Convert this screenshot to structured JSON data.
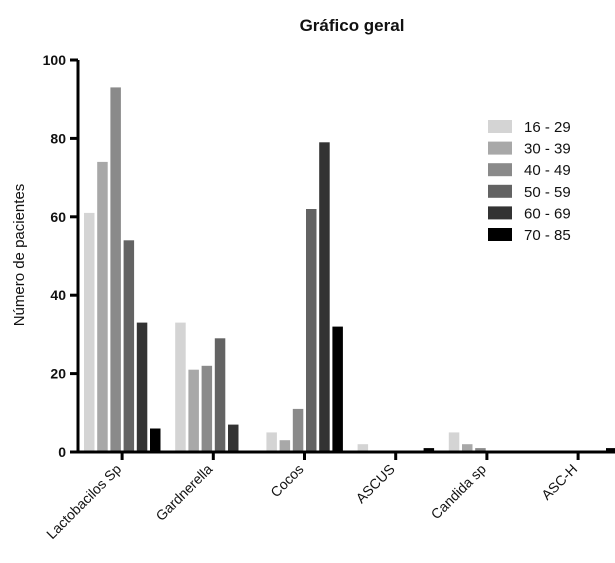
{
  "chart_data": {
    "type": "bar",
    "title": "Gráfico geral",
    "xlabel": "",
    "ylabel": "Número de pacientes",
    "ylim": [
      0,
      100
    ],
    "yticks": [
      0,
      20,
      40,
      60,
      80,
      100
    ],
    "grid": false,
    "legend_position": "top-right",
    "categories": [
      "Lactobacilos Sp",
      "Gardnerella",
      "Cocos",
      "ASCUS",
      "Candida sp",
      "ASC-H"
    ],
    "series": [
      {
        "name": "16 - 29",
        "color": "#d4d4d4",
        "values": [
          61,
          33,
          5,
          2,
          5,
          0
        ]
      },
      {
        "name": "30 - 39",
        "color": "#a8a8a8",
        "values": [
          74,
          21,
          3,
          0,
          2,
          0
        ]
      },
      {
        "name": "40 - 49",
        "color": "#8a8a8a",
        "values": [
          93,
          22,
          11,
          0,
          1,
          0
        ]
      },
      {
        "name": "50 - 59",
        "color": "#636363",
        "values": [
          54,
          29,
          62,
          0,
          0,
          0
        ]
      },
      {
        "name": "60 - 69",
        "color": "#333333",
        "values": [
          33,
          7,
          79,
          0,
          0,
          0
        ]
      },
      {
        "name": "70 - 85",
        "color": "#000000",
        "values": [
          6,
          0,
          32,
          1,
          0,
          1
        ]
      }
    ]
  }
}
